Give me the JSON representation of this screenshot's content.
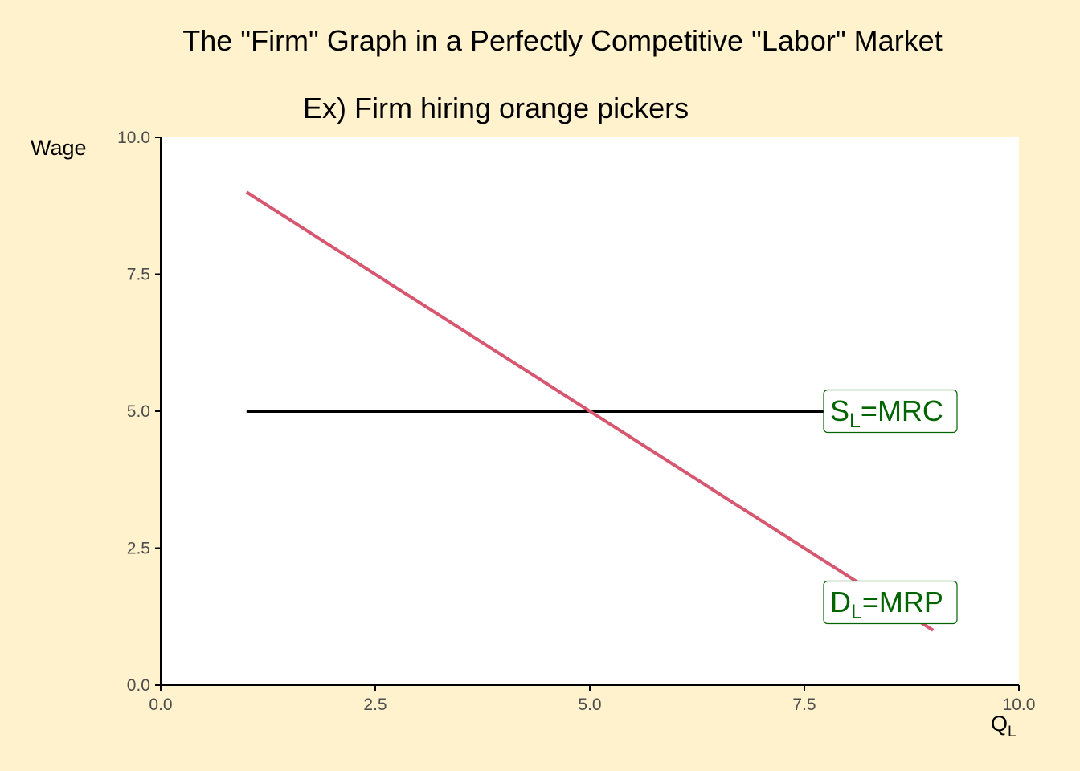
{
  "chart_data": {
    "type": "line",
    "title": "The \"Firm\" Graph in a Perfectly Competitive \"Labor\" Market",
    "subtitle": "Ex) Firm hiring orange pickers",
    "xlabel": {
      "main": "Q",
      "sub": "L"
    },
    "ylabel": "Wage",
    "xlim": [
      0,
      10
    ],
    "ylim": [
      0,
      10
    ],
    "xticks": [
      0,
      2.5,
      5,
      7.5,
      10
    ],
    "yticks": [
      0,
      2.5,
      5,
      7.5,
      10
    ],
    "xtick_labels": [
      "0.0",
      "2.5",
      "5.0",
      "7.5",
      "10.0"
    ],
    "ytick_labels": [
      "0.0",
      "2.5",
      "5.0",
      "7.5",
      "10.0"
    ],
    "grid": false,
    "series": [
      {
        "name": "S=MRC",
        "label_main": "S",
        "label_sub": "L",
        "label_rest": "=MRC",
        "color": "#000000",
        "x": [
          1,
          9
        ],
        "y": [
          5,
          5
        ]
      },
      {
        "name": "D=MRP",
        "label_main": "D",
        "label_sub": "L",
        "label_rest": "=MRP",
        "color": "#D6576F",
        "x": [
          1,
          9
        ],
        "y": [
          9,
          1
        ]
      }
    ],
    "label_color": "#006400",
    "colors": {
      "background": "#FFF2CC",
      "panel": "#FFFFFF",
      "axis": "#000000",
      "tick_text": "#4D4D4D"
    }
  }
}
